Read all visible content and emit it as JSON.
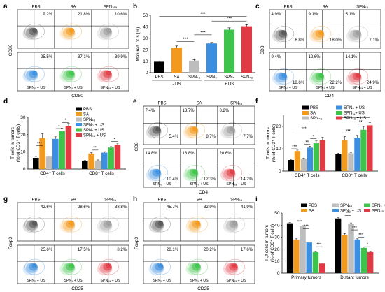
{
  "panel_letters": {
    "a": "a",
    "b": "b",
    "c": "c",
    "d": "d",
    "e": "e",
    "f": "f",
    "g": "g",
    "h": "h",
    "i": "i"
  },
  "flow_panels": {
    "a": {
      "y_axis": "CD86",
      "x_axis": "CD80",
      "col_titles": [
        "PBS",
        "SA",
        "SPN₂ₑₐ"
      ],
      "row_labels": [
        "",
        "",
        "",
        "SPN₀ + US",
        "SPNₛ + US",
        "SPNₛₐ + US"
      ],
      "percent": [
        "9.2%",
        "21.8%",
        "10.6%",
        "25.5%",
        "37.1%",
        "39.9%"
      ],
      "colors": [
        "#555555",
        "#f39a1e",
        "#9b9b9b",
        "#3b8fe0",
        "#3ec44a",
        "#e03a44"
      ]
    },
    "c": {
      "y_axis": "CD8",
      "x_axis": "CD4",
      "col_titles": [
        "PBS",
        "SA",
        "SPNₛₐ"
      ],
      "row_labels": [
        "",
        "",
        "",
        "SPN₀ + US",
        "SPNₛ + US",
        "SPNₛₐ + US"
      ],
      "q1": [
        "4.9%",
        "9.1%",
        "5.1%",
        "9.4%",
        "12.6%",
        "14.1%"
      ],
      "q4": [
        "6.8%",
        "18.0%",
        "7.1%",
        "18.6%",
        "22.2%",
        "24.9%"
      ],
      "colors": [
        "#555555",
        "#f39a1e",
        "#9b9b9b",
        "#3b8fe0",
        "#3ec44a",
        "#e03a44"
      ]
    },
    "e": {
      "y_axis": "CD8",
      "x_axis": "CD4",
      "col_titles": [
        "PBS",
        "SA",
        "SPNₛₐ"
      ],
      "row_labels": [
        "",
        "",
        "",
        "SPN₀ + US",
        "SPNₛ + US",
        "SPNₛₐ + US"
      ],
      "q1": [
        "7.4%",
        "13.7%",
        "8.2%",
        "14.8%",
        "18.8%",
        "20.6%"
      ],
      "q4": [
        "5.4%",
        "8.7%",
        "7.7%",
        "10.4%",
        "12.3%",
        "14.2%"
      ],
      "colors": [
        "#555555",
        "#f39a1e",
        "#9b9b9b",
        "#3b8fe0",
        "#3ec44a",
        "#e03a44"
      ]
    },
    "g": {
      "y_axis": "Foxp3",
      "x_axis": "CD25",
      "col_titles": [
        "PBS",
        "SA",
        "SPNₛₐ"
      ],
      "row_labels": [
        "",
        "",
        "",
        "SPN₀ + US",
        "SPNₛ + US",
        "SPNₛₐ + US"
      ],
      "percent": [
        "42.6%",
        "28.6%",
        "38.8%",
        "25.6%",
        "17.5%",
        "8.2%"
      ],
      "colors": [
        "#555555",
        "#f39a1e",
        "#9b9b9b",
        "#3b8fe0",
        "#3ec44a",
        "#e03a44"
      ]
    },
    "h": {
      "y_axis": "Foxp3",
      "x_axis": "CD25",
      "col_titles": [
        "PBS",
        "SA",
        "SPNₛₐ"
      ],
      "row_labels": [
        "",
        "",
        "",
        "SPN₀ + US",
        "SPNₛ + US",
        "SPNₛₐ + US"
      ],
      "percent": [
        "45.7%",
        "32.9%",
        "41.9%",
        "28.1%",
        "20.2%",
        "17.6%"
      ],
      "colors": [
        "#555555",
        "#f39a1e",
        "#9b9b9b",
        "#3b8fe0",
        "#3ec44a",
        "#e03a44"
      ]
    }
  },
  "colors": {
    "pbs": "#000000",
    "sa": "#f39a1e",
    "spnsa": "#bdbdbd",
    "spn0": "#3b8fe0",
    "spns": "#3ec44a",
    "spnsa_us": "#e03a44"
  },
  "chart_data": [
    {
      "id": "b",
      "type": "bar",
      "ylabel": "Matured DCs (%)",
      "ylim": [
        0,
        50
      ],
      "yticks": [
        0,
        10,
        20,
        30,
        40,
        50
      ],
      "categories": [
        "PBS",
        "SA",
        "SPNₛₐ",
        "SPN₀",
        "SPNₛ",
        "SPNₛₐ"
      ],
      "values": [
        9.5,
        22.0,
        10.5,
        25.5,
        37.5,
        40.5
      ],
      "errors": [
        0.6,
        1.3,
        0.8,
        0.8,
        1.6,
        1.4
      ],
      "colors": [
        "#000000",
        "#f39a1e",
        "#bdbdbd",
        "#3b8fe0",
        "#3ec44a",
        "#e03a44"
      ],
      "group_labels": [
        "- US",
        "+ US"
      ],
      "significance": [
        "***",
        "***",
        "***",
        "***"
      ]
    },
    {
      "id": "d",
      "type": "bar",
      "ylabel": "T cells in tumors\n(% of CD3⁺ T cells)",
      "ylim": [
        0,
        30
      ],
      "yticks": [
        0,
        10,
        20,
        30
      ],
      "categories": [
        "CD4⁺ T cells",
        "CD8⁺ T cells"
      ],
      "series": [
        {
          "name": "PBS",
          "values": [
            6.5,
            4.8
          ],
          "errors": [
            0.8,
            0.3
          ]
        },
        {
          "name": "SA",
          "values": [
            18.0,
            9.0
          ],
          "errors": [
            2.5,
            0.5
          ]
        },
        {
          "name": "SPNₛₐ",
          "values": [
            7.2,
            5.0
          ],
          "errors": [
            0.4,
            0.3
          ]
        },
        {
          "name": "SPN₀ + US",
          "values": [
            17.5,
            9.5
          ],
          "errors": [
            1.2,
            0.6
          ]
        },
        {
          "name": "SPNₛ + US",
          "values": [
            22.0,
            12.5
          ],
          "errors": [
            1.8,
            0.5
          ]
        },
        {
          "name": "SPNₛₐ + US",
          "values": [
            25.0,
            14.0
          ],
          "errors": [
            1.5,
            1.0
          ]
        }
      ],
      "colors": [
        "#000000",
        "#f39a1e",
        "#bdbdbd",
        "#3b8fe0",
        "#3ec44a",
        "#e03a44"
      ],
      "significance": [
        "***",
        "*",
        "*",
        "**",
        "*"
      ]
    },
    {
      "id": "f",
      "type": "bar",
      "ylabel": "T cells in tumors\n(% of CD3⁺ T cells)",
      "ylim": [
        0,
        25
      ],
      "yticks": [
        0,
        10,
        20
      ],
      "categories": [
        "CD4⁺ T cells",
        "CD8⁺ T cells"
      ],
      "series": [
        {
          "name": "PBS",
          "values": [
            5.0,
            7.5
          ],
          "errors": [
            0.3,
            0.5
          ]
        },
        {
          "name": "SA",
          "values": [
            9.0,
            14.0
          ],
          "errors": [
            0.4,
            1.5
          ]
        },
        {
          "name": "SPNₛₐ",
          "values": [
            5.5,
            8.0
          ],
          "errors": [
            0.3,
            0.4
          ]
        },
        {
          "name": "SPN₀ + US",
          "values": [
            10.5,
            15.0
          ],
          "errors": [
            0.6,
            1.0
          ]
        },
        {
          "name": "SPNₛ + US",
          "values": [
            12.5,
            18.5
          ],
          "errors": [
            1.0,
            1.5
          ]
        },
        {
          "name": "SPNₛₐ + US",
          "values": [
            14.0,
            20.5
          ],
          "errors": [
            1.2,
            1.2
          ]
        }
      ],
      "colors": [
        "#000000",
        "#f39a1e",
        "#bdbdbd",
        "#3b8fe0",
        "#3ec44a",
        "#e03a44"
      ],
      "significance": [
        "***",
        "**",
        "*",
        "***",
        "***",
        "**",
        "*"
      ]
    },
    {
      "id": "i",
      "type": "bar",
      "ylabel": "Tᵣₑᵍ cells in tumors\n(% of CD3⁺ T cells)",
      "ylim": [
        0,
        50
      ],
      "yticks": [
        0,
        10,
        20,
        30,
        40,
        50
      ],
      "categories": [
        "Primary tumors",
        "Distant tumors"
      ],
      "series": [
        {
          "name": "PBS",
          "values": [
            41.5,
            45.5
          ],
          "errors": [
            0.8,
            0.6
          ]
        },
        {
          "name": "SA",
          "values": [
            28.0,
            32.0
          ],
          "errors": [
            0.6,
            1.0
          ]
        },
        {
          "name": "SPNₛₐ",
          "values": [
            39.0,
            41.0
          ],
          "errors": [
            0.5,
            0.8
          ]
        },
        {
          "name": "SPN₀ + US",
          "values": [
            25.5,
            28.0
          ],
          "errors": [
            0.5,
            0.6
          ]
        },
        {
          "name": "SPNₛ + US",
          "values": [
            17.5,
            21.0
          ],
          "errors": [
            0.5,
            0.8
          ]
        },
        {
          "name": "SPNₛₐ + US",
          "values": [
            8.0,
            17.5
          ],
          "errors": [
            0.3,
            0.5
          ]
        }
      ],
      "colors": [
        "#000000",
        "#f39a1e",
        "#bdbdbd",
        "#3b8fe0",
        "#3ec44a",
        "#e03a44"
      ],
      "significance": [
        "***",
        "***",
        "***",
        "***",
        "***",
        "***",
        "*"
      ]
    }
  ]
}
